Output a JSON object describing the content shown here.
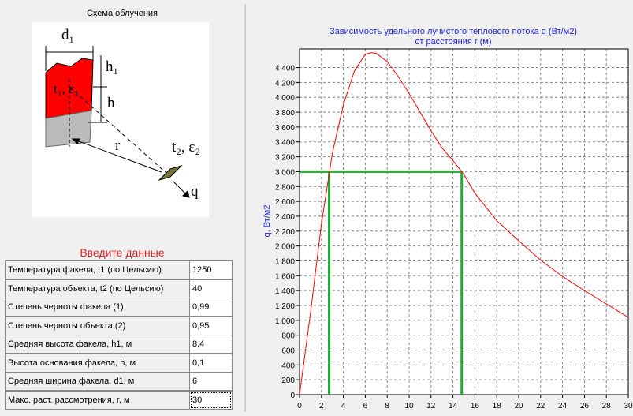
{
  "scheme": {
    "title": "Схема облучения",
    "labels": {
      "d1": "d₁",
      "h1": "h₁",
      "h": "h",
      "t1e1": "t₁, ε₁",
      "r": "r",
      "t2e2": "t₂, ε₂",
      "q": "q"
    }
  },
  "inputs": {
    "title": "Введите данные",
    "rows": [
      [
        "Температура факела, t1 (по Цельсию)",
        "1250"
      ],
      [
        "Температура объекта, t2 (по Цельсию)",
        "40"
      ],
      [
        "Степень черноты факела (1)",
        "0,99"
      ],
      [
        "Степень черноты объекта (2)",
        "0,95"
      ],
      [
        "Средняя высота факела, h1, м",
        "8,4"
      ],
      [
        "Высота основания факела, h, м",
        "0,1"
      ],
      [
        "Средняя ширина факела, d1, м",
        "6"
      ],
      [
        "Макс. раст. рассмотрения, r, м",
        "30"
      ]
    ]
  },
  "chart_data": {
    "type": "line",
    "title": [
      "Зависимость удельного лучистого теплового потока q (Вт/м2)",
      "от расстояния  r (м)"
    ],
    "y_label": "q, Вт/м2",
    "x": [
      0,
      1,
      2,
      3,
      4,
      5,
      6,
      6.6,
      7,
      8,
      9,
      10,
      11,
      12,
      13,
      14,
      15,
      16,
      18,
      20,
      22,
      24,
      26,
      28,
      30
    ],
    "values": [
      0,
      1100,
      2300,
      3250,
      3900,
      4350,
      4580,
      4600,
      4590,
      4480,
      4280,
      4050,
      3800,
      3550,
      3320,
      3150,
      2960,
      2710,
      2340,
      2070,
      1810,
      1590,
      1400,
      1220,
      1040
    ],
    "color": "#ff0000",
    "reference": {
      "y": 3000,
      "x": [
        2.7,
        14.8
      ],
      "color": "#22aa33"
    },
    "xlim": [
      0,
      30
    ],
    "ylim": [
      0,
      4650
    ],
    "xticks": [
      0,
      2,
      4,
      6,
      8,
      10,
      12,
      14,
      16,
      18,
      20,
      22,
      24,
      26,
      28,
      30
    ],
    "yticks": [
      0,
      200,
      400,
      600,
      800,
      {
        "value": 1000,
        "label": "1 000"
      },
      {
        "value": 1200,
        "label": "1 200"
      },
      {
        "value": 1400,
        "label": "1 400"
      },
      {
        "value": 1600,
        "label": "1 600"
      },
      {
        "value": 1800,
        "label": "1 800"
      },
      {
        "value": 2000,
        "label": "2 000"
      },
      {
        "value": 2200,
        "label": "2 200"
      },
      {
        "value": 2400,
        "label": "2 400"
      },
      {
        "value": 2600,
        "label": "2 600"
      },
      {
        "value": 2800,
        "label": "2 800"
      },
      {
        "value": 3000,
        "label": "3 000"
      },
      {
        "value": 3200,
        "label": "3 200"
      },
      {
        "value": 3400,
        "label": "3 400"
      },
      {
        "value": 3600,
        "label": "3 600"
      },
      {
        "value": 3800,
        "label": "3 800"
      },
      {
        "value": 4000,
        "label": "4 000"
      },
      {
        "value": 4200,
        "label": "4 200"
      },
      {
        "value": 4400,
        "label": "4 400"
      }
    ],
    "grid": true
  }
}
